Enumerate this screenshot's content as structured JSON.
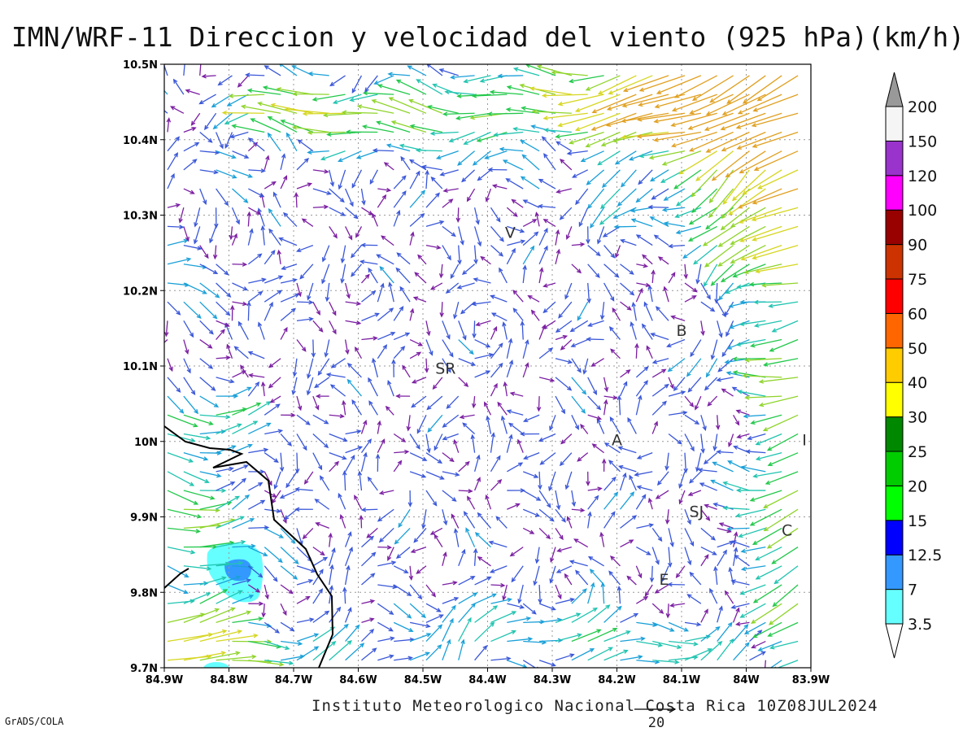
{
  "title": "IMN/WRF-11 Direccion y velocidad del viento (925 hPa)(km/h)",
  "footer": "Instituto Meteorologico Nacional Costa Rica 10Z08JUL2024",
  "software_label": "GrADS/COLA",
  "reference_vector_label": "20",
  "axes": {
    "x_ticks": [
      {
        "value": -84.9,
        "label": "84.9W"
      },
      {
        "value": -84.8,
        "label": "84.8W"
      },
      {
        "value": -84.7,
        "label": "84.7W"
      },
      {
        "value": -84.6,
        "label": "84.6W"
      },
      {
        "value": -84.5,
        "label": "84.5W"
      },
      {
        "value": -84.4,
        "label": "84.4W"
      },
      {
        "value": -84.3,
        "label": "84.3W"
      },
      {
        "value": -84.2,
        "label": "84.2W"
      },
      {
        "value": -84.1,
        "label": "84.1W"
      },
      {
        "value": -84.0,
        "label": "84W"
      },
      {
        "value": -83.9,
        "label": "83.9W"
      }
    ],
    "y_ticks": [
      {
        "value": 10.5,
        "label": "10.5N"
      },
      {
        "value": 10.4,
        "label": "10.4N"
      },
      {
        "value": 10.3,
        "label": "10.3N"
      },
      {
        "value": 10.2,
        "label": "10.2N"
      },
      {
        "value": 10.1,
        "label": "10.1N"
      },
      {
        "value": 10.0,
        "label": "10N"
      },
      {
        "value": 9.9,
        "label": "9.9N"
      },
      {
        "value": 9.8,
        "label": "9.8N"
      },
      {
        "value": 9.7,
        "label": "9.7N"
      }
    ],
    "x_range": [
      -84.9,
      -83.9
    ],
    "y_range": [
      9.7,
      10.5
    ],
    "grid": true
  },
  "city_labels": [
    {
      "label": "V",
      "lon": -84.365,
      "lat": 10.27
    },
    {
      "label": "B",
      "lon": -84.1,
      "lat": 10.14
    },
    {
      "label": "SR",
      "lon": -84.465,
      "lat": 10.09
    },
    {
      "label": "A",
      "lon": -84.2,
      "lat": 9.995
    },
    {
      "label": "I",
      "lon": -83.91,
      "lat": 9.995
    },
    {
      "label": "SJ",
      "lon": -84.077,
      "lat": 9.9
    },
    {
      "label": "C",
      "lon": -83.937,
      "lat": 9.875
    },
    {
      "label": "E",
      "lon": -84.127,
      "lat": 9.81
    }
  ],
  "colorbar": {
    "levels": [
      "3.5",
      "7",
      "12.5",
      "15",
      "20",
      "25",
      "30",
      "40",
      "50",
      "60",
      "75",
      "90",
      "100",
      "120",
      "150",
      "200"
    ],
    "colors": [
      "#66ffff",
      "#3399ff",
      "#0000ff",
      "#00ff00",
      "#00cc00",
      "#008800",
      "#ffff00",
      "#ffcc00",
      "#ff6600",
      "#ff0000",
      "#cc3300",
      "#990000",
      "#ff00ff",
      "#9933cc",
      "#f5f5f5",
      "#999999"
    ]
  },
  "chart_data": {
    "type": "vector_field",
    "units": "km/h",
    "level": "925 hPa",
    "lon_range": [
      -84.9,
      -83.9
    ],
    "lat_range": [
      9.7,
      10.5
    ],
    "shaded_regions": [
      {
        "level": "3.5",
        "color": "#66ffff",
        "center": [
          -84.785,
          9.83
        ]
      },
      {
        "level": "7",
        "color": "#3399ff",
        "center": [
          -84.795,
          9.83
        ]
      }
    ],
    "wind_samples": [
      {
        "region": "northeast corner",
        "lon": -84.0,
        "lat": 10.45,
        "direction": "from NE",
        "speed": 40
      },
      {
        "region": "north band",
        "lon": -84.4,
        "lat": 10.44,
        "direction": "from E",
        "speed": 22
      },
      {
        "region": "west coast",
        "lon": -84.85,
        "lat": 9.85,
        "direction": "from W",
        "speed": 14
      },
      {
        "region": "central",
        "lon": -84.4,
        "lat": 10.1,
        "direction": "variable",
        "speed": 5
      },
      {
        "region": "east",
        "lon": -83.95,
        "lat": 9.93,
        "direction": "from NE",
        "speed": 35
      }
    ]
  }
}
